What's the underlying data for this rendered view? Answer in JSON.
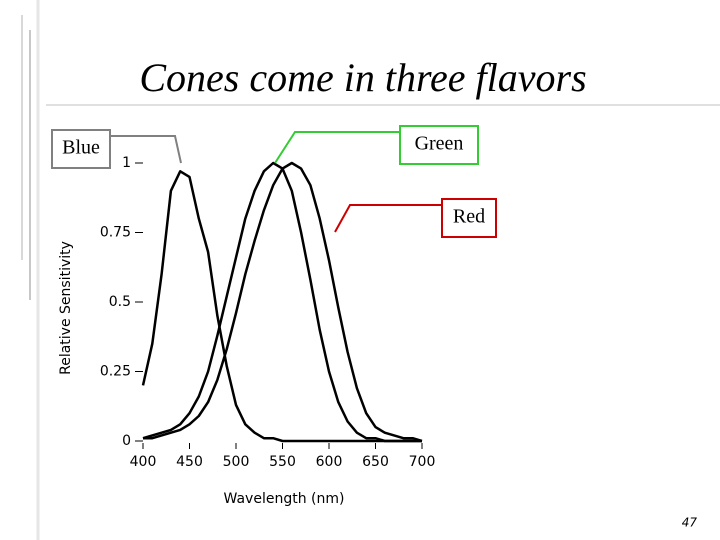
{
  "chart_data": {
    "type": "line",
    "title": "Cones come in three flavors",
    "x_label": "Wavelength (nm)",
    "y_label": "Relative Sensitivity",
    "x": [
      400,
      410,
      420,
      430,
      440,
      450,
      460,
      470,
      480,
      490,
      500,
      510,
      520,
      530,
      540,
      550,
      560,
      570,
      580,
      590,
      600,
      610,
      620,
      630,
      640,
      650,
      660,
      670,
      680,
      690,
      700
    ],
    "series": [
      {
        "name": "Blue",
        "color": "#000000",
        "callout_color": "#808080",
        "values": [
          0.2,
          0.35,
          0.6,
          0.9,
          0.97,
          0.95,
          0.8,
          0.68,
          0.45,
          0.27,
          0.13,
          0.06,
          0.03,
          0.01,
          0.01,
          0,
          0,
          0,
          0,
          0,
          0,
          0,
          0,
          0,
          0,
          0,
          0,
          0,
          0,
          0,
          0
        ]
      },
      {
        "name": "Green",
        "color": "#000000",
        "callout_color": "#33cc33",
        "values": [
          0.01,
          0.02,
          0.03,
          0.04,
          0.06,
          0.1,
          0.16,
          0.25,
          0.38,
          0.52,
          0.66,
          0.8,
          0.9,
          0.97,
          1.0,
          0.98,
          0.9,
          0.75,
          0.58,
          0.4,
          0.25,
          0.14,
          0.07,
          0.03,
          0.01,
          0.01,
          0,
          0,
          0,
          0,
          0
        ]
      },
      {
        "name": "Red",
        "color": "#000000",
        "callout_color": "#cc0000",
        "values": [
          0.01,
          0.01,
          0.02,
          0.03,
          0.04,
          0.06,
          0.09,
          0.14,
          0.22,
          0.33,
          0.46,
          0.6,
          0.72,
          0.83,
          0.92,
          0.98,
          1.0,
          0.98,
          0.92,
          0.8,
          0.65,
          0.48,
          0.32,
          0.19,
          0.1,
          0.05,
          0.03,
          0.02,
          0.01,
          0.01,
          0
        ]
      }
    ],
    "xlim": [
      400,
      700
    ],
    "ylim": [
      0,
      1
    ],
    "xticks": [
      400,
      450,
      500,
      550,
      600,
      650,
      700
    ],
    "yticks": [
      0,
      0.25,
      0.5,
      0.75,
      1
    ],
    "grid": false
  },
  "page_number": "47"
}
